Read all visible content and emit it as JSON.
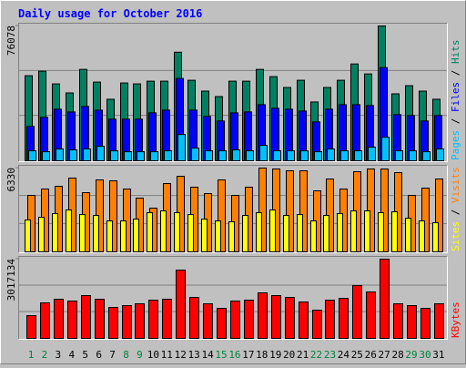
{
  "chart_data": [
    {
      "type": "bar",
      "title": "Daily usage for October 2016",
      "ylim": [
        0,
        76078
      ],
      "yticks": [
        76078
      ],
      "legend_separator": " / ",
      "series": [
        {
          "name": "Hits",
          "color": "#008060",
          "values": [
            48000,
            50550,
            43400,
            38300,
            51570,
            44420,
            34720,
            43910,
            43400,
            44930,
            44930,
            61270,
            45440,
            39320,
            36250,
            44930,
            44930,
            51570,
            47490,
            41360,
            45440,
            33190,
            41360,
            45440,
            54630,
            49020,
            76078,
            37780,
            42380,
            39320,
            34720
          ]
        },
        {
          "name": "Files",
          "color": "#0000ff",
          "values": [
            19400,
            24510,
            29100,
            27570,
            30640,
            28590,
            23490,
            23490,
            23490,
            27060,
            28590,
            46460,
            28590,
            25020,
            22470,
            27060,
            27570,
            31660,
            29610,
            29100,
            28080,
            21960,
            29100,
            31660,
            31660,
            31150,
            52590,
            26040,
            25530,
            22470,
            25530
          ]
        },
        {
          "name": "Pages",
          "color": "#00c0ff",
          "values": [
            5620,
            5110,
            6640,
            6130,
            6640,
            8170,
            5620,
            5110,
            5110,
            5110,
            5620,
            14810,
            7150,
            5620,
            5620,
            6130,
            5620,
            8680,
            5620,
            5620,
            5620,
            5110,
            6640,
            5620,
            5620,
            7660,
            13280,
            5620,
            5620,
            5110,
            6640
          ]
        }
      ]
    },
    {
      "type": "bar",
      "ylim": [
        0,
        6330
      ],
      "yticks": [
        6330
      ],
      "legend_separator": " / ",
      "series": [
        {
          "name": "Visits",
          "color": "#ff8000",
          "values": [
            4266,
            4747,
            4954,
            5573,
            4472,
            5435,
            5366,
            4747,
            4059,
            3302,
            5160,
            5710,
            4885,
            4403,
            5435,
            4266,
            4885,
            6330,
            6261,
            6123,
            6123,
            4610,
            5504,
            4747,
            6054,
            6261,
            6261,
            5986,
            4266,
            4816,
            5504
          ]
        },
        {
          "name": "Sites",
          "color": "#ffff00",
          "values": [
            2408,
            2614,
            2890,
            3165,
            2821,
            2752,
            2339,
            2339,
            2477,
            2958,
            3096,
            2958,
            2821,
            2477,
            2339,
            2270,
            2752,
            2958,
            3165,
            2752,
            2821,
            2339,
            2752,
            2890,
            3096,
            3096,
            2958,
            3027,
            2546,
            2339,
            2202
          ]
        }
      ]
    },
    {
      "type": "bar",
      "ylim": [
        0,
        3017134
      ],
      "yticks": [
        3017134
      ],
      "categories": [
        "1",
        "2",
        "3",
        "4",
        "5",
        "6",
        "7",
        "8",
        "9",
        "10",
        "11",
        "12",
        "13",
        "14",
        "15",
        "16",
        "17",
        "18",
        "19",
        "20",
        "21",
        "22",
        "23",
        "24",
        "25",
        "26",
        "27",
        "28",
        "29",
        "30",
        "31"
      ],
      "category_colors": [
        "#008040",
        "#008040",
        "#000000",
        "#000000",
        "#000000",
        "#000000",
        "#000000",
        "#008040",
        "#008040",
        "#000000",
        "#000000",
        "#000000",
        "#000000",
        "#000000",
        "#008040",
        "#008040",
        "#000000",
        "#000000",
        "#000000",
        "#000000",
        "#000000",
        "#008040",
        "#008040",
        "#000000",
        "#000000",
        "#000000",
        "#000000",
        "#000000",
        "#008040",
        "#008040",
        "#000000"
      ],
      "series": [
        {
          "name": "KBytes",
          "color": "#ff0000",
          "values": [
            867000,
            1352520,
            1491240,
            1421880,
            1629960,
            1491240,
            1179120,
            1248480,
            1317840,
            1456560,
            1491240,
            2601000,
            1560600,
            1317840,
            1144440,
            1421880,
            1456560,
            1734000,
            1629960,
            1560600,
            1387200,
            1075080,
            1456560,
            1525920,
            2011440,
            1768680,
            3017134,
            1317840,
            1248480,
            1144440,
            1317840
          ]
        }
      ]
    }
  ]
}
